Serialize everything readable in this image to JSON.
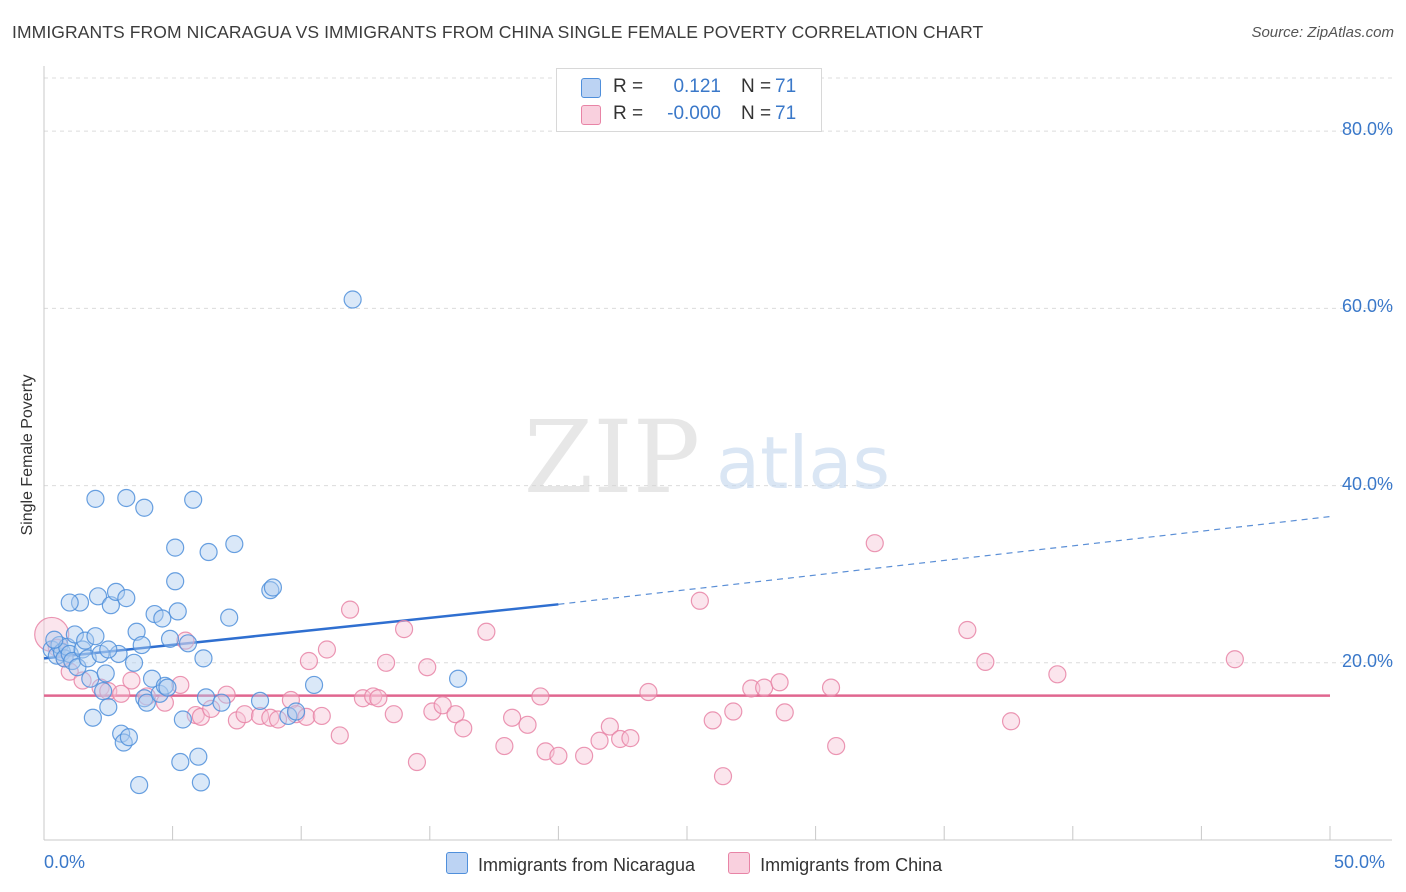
{
  "title": "IMMIGRANTS FROM NICARAGUA VS IMMIGRANTS FROM CHINA SINGLE FEMALE POVERTY CORRELATION CHART",
  "source": "Source: ZipAtlas.com",
  "watermark": {
    "zip": "ZIP",
    "atlas": "atlas"
  },
  "legend": {
    "r_label": "R =",
    "n_label": "N =",
    "rows": [
      {
        "r": "0.121",
        "n": "71"
      },
      {
        "r": "-0.000",
        "n": "71"
      }
    ]
  },
  "chart_data": {
    "type": "scatter",
    "title": "IMMIGRANTS FROM NICARAGUA VS IMMIGRANTS FROM CHINA SINGLE FEMALE POVERTY CORRELATION CHART",
    "xlabel": "",
    "ylabel": "Single Female Poverty",
    "xlim": [
      0,
      50
    ],
    "ylim": [
      0,
      86
    ],
    "x_tick_labels": [
      "0.0%",
      "50.0%"
    ],
    "y_ticks": [
      20,
      40,
      60,
      80
    ],
    "y_tick_labels": [
      "20.0%",
      "40.0%",
      "60.0%",
      "80.0%"
    ],
    "grid": true,
    "series": [
      {
        "name": "Immigrants from Nicaragua",
        "color": "#4f8fdb",
        "fill": "#aecbf0",
        "trend": {
          "x": [
            0,
            20,
            50
          ],
          "y": [
            20.5,
            26.6,
            36.5
          ],
          "solid_until": 20
        },
        "points": [
          [
            0.3,
            21.5
          ],
          [
            0.5,
            20.8
          ],
          [
            0.6,
            22.0
          ],
          [
            0.7,
            21.2
          ],
          [
            0.8,
            20.5
          ],
          [
            0.9,
            21.8
          ],
          [
            1.0,
            21.0
          ],
          [
            1.1,
            20.2
          ],
          [
            1.2,
            23.2
          ],
          [
            1.3,
            19.5
          ],
          [
            1.4,
            26.8
          ],
          [
            1.5,
            21.5
          ],
          [
            1.6,
            22.5
          ],
          [
            1.7,
            20.5
          ],
          [
            1.8,
            18.2
          ],
          [
            1.9,
            13.8
          ],
          [
            2.0,
            23.0
          ],
          [
            2.1,
            27.5
          ],
          [
            2.2,
            21.0
          ],
          [
            2.3,
            16.8
          ],
          [
            2.4,
            18.8
          ],
          [
            2.5,
            15.0
          ],
          [
            2.6,
            26.5
          ],
          [
            2.8,
            28.0
          ],
          [
            2.9,
            21.0
          ],
          [
            3.0,
            12.0
          ],
          [
            3.1,
            11.0
          ],
          [
            3.2,
            27.3
          ],
          [
            3.3,
            11.6
          ],
          [
            3.5,
            20.0
          ],
          [
            3.6,
            23.5
          ],
          [
            3.7,
            6.2
          ],
          [
            3.8,
            22.0
          ],
          [
            3.9,
            16.0
          ],
          [
            4.0,
            15.5
          ],
          [
            4.2,
            18.2
          ],
          [
            4.3,
            25.5
          ],
          [
            4.5,
            16.5
          ],
          [
            4.6,
            25.0
          ],
          [
            4.7,
            17.4
          ],
          [
            4.9,
            22.7
          ],
          [
            5.1,
            29.2
          ],
          [
            5.2,
            25.8
          ],
          [
            5.3,
            8.8
          ],
          [
            5.4,
            13.6
          ],
          [
            5.6,
            22.2
          ],
          [
            5.8,
            38.4
          ],
          [
            6.0,
            9.4
          ],
          [
            6.1,
            6.5
          ],
          [
            6.2,
            20.5
          ],
          [
            6.3,
            16.1
          ],
          [
            6.4,
            32.5
          ],
          [
            6.9,
            15.5
          ],
          [
            7.2,
            25.1
          ],
          [
            7.4,
            33.4
          ],
          [
            8.4,
            15.7
          ],
          [
            8.8,
            28.2
          ],
          [
            8.9,
            28.5
          ],
          [
            9.5,
            14.0
          ],
          [
            9.8,
            14.5
          ],
          [
            10.5,
            17.5
          ],
          [
            12.0,
            61.0
          ],
          [
            16.1,
            18.2
          ],
          [
            2.0,
            38.5
          ],
          [
            3.9,
            37.5
          ],
          [
            5.1,
            33.0
          ],
          [
            3.2,
            38.6
          ],
          [
            0.4,
            22.6
          ],
          [
            1.0,
            26.8
          ],
          [
            4.8,
            17.2
          ],
          [
            2.5,
            21.5
          ]
        ]
      },
      {
        "name": "Immigrants from China",
        "color": "#e884a6",
        "fill": "#f7c6d6",
        "trend": {
          "x": [
            0,
            50
          ],
          "y": [
            16.3,
            16.3
          ]
        },
        "points": [
          [
            0.3,
            23.2
          ],
          [
            0.8,
            20.5
          ],
          [
            1.0,
            19.0
          ],
          [
            1.5,
            18.0
          ],
          [
            2.2,
            17.2
          ],
          [
            2.5,
            16.8
          ],
          [
            3.0,
            16.5
          ],
          [
            3.4,
            18.0
          ],
          [
            4.0,
            16.2
          ],
          [
            4.7,
            15.5
          ],
          [
            5.3,
            17.5
          ],
          [
            5.5,
            22.5
          ],
          [
            5.9,
            14.1
          ],
          [
            6.1,
            13.9
          ],
          [
            6.5,
            14.8
          ],
          [
            7.1,
            16.4
          ],
          [
            7.5,
            13.5
          ],
          [
            7.8,
            14.2
          ],
          [
            8.4,
            14.0
          ],
          [
            8.8,
            13.8
          ],
          [
            9.1,
            13.6
          ],
          [
            9.6,
            15.8
          ],
          [
            9.8,
            14.2
          ],
          [
            10.2,
            13.9
          ],
          [
            10.3,
            20.2
          ],
          [
            10.8,
            14.0
          ],
          [
            11.0,
            21.5
          ],
          [
            11.5,
            11.8
          ],
          [
            11.9,
            26.0
          ],
          [
            12.4,
            16.0
          ],
          [
            12.8,
            16.2
          ],
          [
            13.0,
            16.0
          ],
          [
            13.3,
            20.0
          ],
          [
            13.6,
            14.2
          ],
          [
            14.0,
            23.8
          ],
          [
            14.5,
            8.8
          ],
          [
            14.9,
            19.5
          ],
          [
            15.1,
            14.5
          ],
          [
            15.5,
            15.2
          ],
          [
            16.0,
            14.2
          ],
          [
            16.3,
            12.6
          ],
          [
            17.2,
            23.5
          ],
          [
            17.9,
            10.6
          ],
          [
            18.2,
            13.8
          ],
          [
            18.8,
            13.0
          ],
          [
            19.3,
            16.2
          ],
          [
            19.5,
            10.0
          ],
          [
            20.0,
            9.5
          ],
          [
            21.0,
            9.5
          ],
          [
            21.6,
            11.2
          ],
          [
            22.0,
            12.8
          ],
          [
            22.4,
            11.4
          ],
          [
            22.8,
            11.5
          ],
          [
            23.5,
            16.7
          ],
          [
            25.5,
            27.0
          ],
          [
            26.0,
            13.5
          ],
          [
            26.4,
            7.2
          ],
          [
            26.8,
            14.5
          ],
          [
            27.5,
            17.1
          ],
          [
            28.0,
            17.2
          ],
          [
            28.6,
            17.8
          ],
          [
            28.8,
            14.4
          ],
          [
            30.6,
            17.2
          ],
          [
            30.8,
            10.6
          ],
          [
            32.3,
            33.5
          ],
          [
            35.9,
            23.7
          ],
          [
            36.6,
            20.1
          ],
          [
            37.6,
            13.4
          ],
          [
            39.4,
            18.7
          ],
          [
            46.3,
            20.4
          ],
          [
            0.5,
            21.7
          ]
        ]
      }
    ]
  }
}
